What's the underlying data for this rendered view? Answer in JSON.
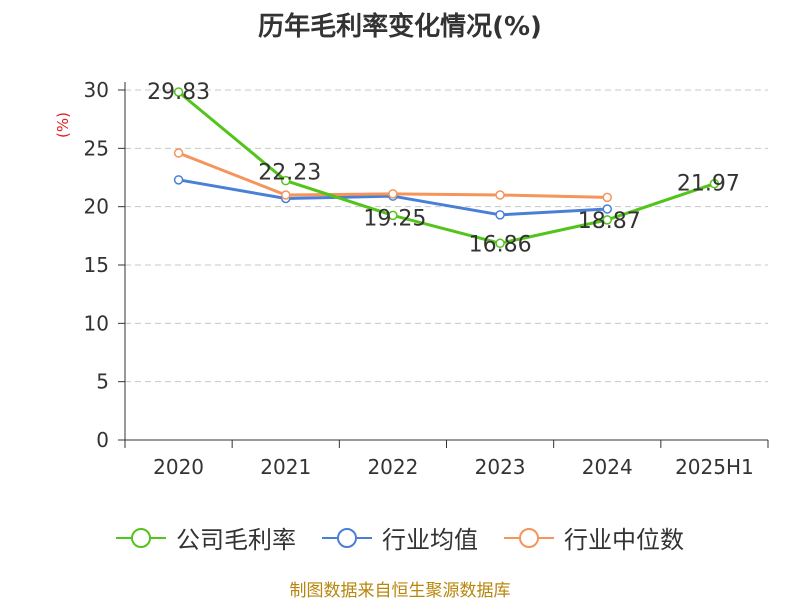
{
  "chart_data": {
    "type": "line",
    "title": "历年毛利率变化情况(%)",
    "ylabel": "(%)",
    "categories": [
      "2020",
      "2021",
      "2022",
      "2023",
      "2024",
      "2025H1"
    ],
    "ylim": [
      0,
      30
    ],
    "yticks": [
      0,
      5,
      10,
      15,
      20,
      25,
      30
    ],
    "grid": true,
    "legend_position": "bottom",
    "series": [
      {
        "name": "公司毛利率",
        "color": "#52c41a",
        "values": [
          29.83,
          22.23,
          19.25,
          16.86,
          18.87,
          21.97
        ],
        "labels": [
          "29.83",
          "22.23",
          "19.25",
          "16.86",
          "18.87",
          "21.97"
        ]
      },
      {
        "name": "行业均值",
        "color": "#4a7fd8",
        "values": [
          22.3,
          20.7,
          20.9,
          19.3,
          19.8,
          null
        ]
      },
      {
        "name": "行业中位数",
        "color": "#f5945b",
        "values": [
          24.6,
          21.0,
          21.1,
          21.0,
          20.8,
          null
        ]
      }
    ]
  },
  "source": "制图数据来自恒生聚源数据库"
}
